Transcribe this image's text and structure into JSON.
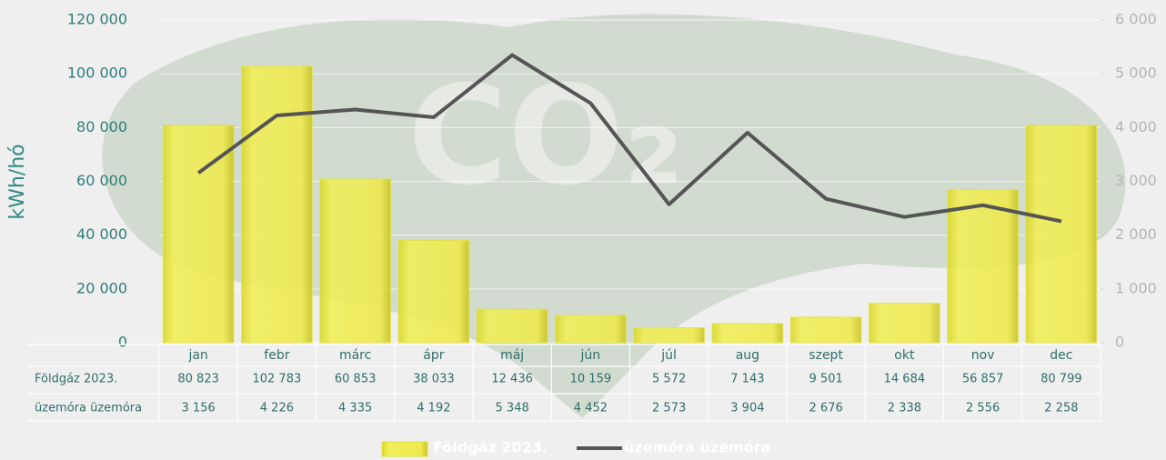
{
  "chart_data": {
    "type": "bar-line",
    "watermark": "CO₂",
    "y_label": "kWh/hó",
    "categories": [
      "jan",
      "febr",
      "márc",
      "ápr",
      "máj",
      "jún",
      "júl",
      "aug",
      "szept",
      "okt",
      "nov",
      "dec"
    ],
    "series": [
      {
        "name": "Földgáz 2023.",
        "type": "bar",
        "color": "#e6e23a",
        "values": [
          80823,
          102783,
          60853,
          38033,
          12436,
          10159,
          5572,
          7143,
          9501,
          14684,
          56857,
          80799
        ],
        "value_labels": [
          "80 823",
          "102 783",
          "60 853",
          "38 033",
          "12 436",
          "10 159",
          "5 572",
          "7 143",
          "9 501",
          "14 684",
          "56 857",
          "80 799"
        ]
      },
      {
        "name": "üzemóra üzemóra",
        "type": "line",
        "axis": "y2",
        "color": "#555555",
        "values": [
          3156,
          4226,
          4335,
          4192,
          5348,
          4452,
          2573,
          3904,
          2676,
          2338,
          2556,
          2258
        ],
        "value_labels": [
          "3 156",
          "4 226",
          "4 335",
          "4 192",
          "5 348",
          "4 452",
          "2 573",
          "3 904",
          "2 676",
          "2 338",
          "2 556",
          "2 258"
        ]
      }
    ],
    "ylim": [
      0,
      120000
    ],
    "yticks": [
      {
        "value": 0,
        "label": "0"
      },
      {
        "value": 20000,
        "label": "20 000"
      },
      {
        "value": 40000,
        "label": "40 000"
      },
      {
        "value": 60000,
        "label": "60 000"
      },
      {
        "value": 80000,
        "label": "80 000"
      },
      {
        "value": 100000,
        "label": "100 000"
      },
      {
        "value": 120000,
        "label": "120 000"
      }
    ],
    "y2lim": [
      0,
      6000
    ],
    "y2ticks": [
      {
        "value": 0,
        "label": "0"
      },
      {
        "value": 1000,
        "label": "1 000"
      },
      {
        "value": 2000,
        "label": "2 000"
      },
      {
        "value": 3000,
        "label": "3 000"
      },
      {
        "value": 4000,
        "label": "4 000"
      },
      {
        "value": 5000,
        "label": "5 000"
      },
      {
        "value": 6000,
        "label": "6 000"
      }
    ],
    "grid": true
  }
}
